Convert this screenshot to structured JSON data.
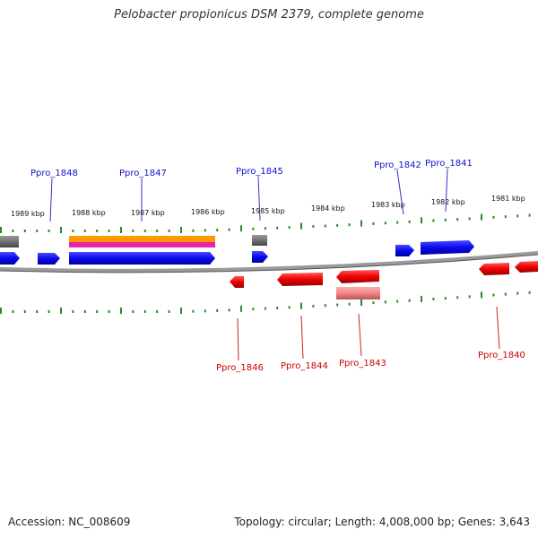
{
  "title": "Pelobacter propionicus DSM 2379, complete genome",
  "footer": {
    "accession": "Accession: NC_008609",
    "info": "Topology: circular; Length: 4,008,000 bp; Genes: 3,643"
  },
  "kbp_labels": [
    "1989 kbp",
    "1988 kbp",
    "1987 kbp",
    "1986 kbp",
    "1985 kbp",
    "1984 kbp",
    "1983 kbp",
    "1982 kbp",
    "1981 kbp"
  ],
  "forward_genes": [
    "Ppro_1848",
    "Ppro_1847",
    "Ppro_1845",
    "Ppro_1842",
    "Ppro_1841"
  ],
  "reverse_genes": [
    "Ppro_1846",
    "Ppro_1844",
    "Ppro_1843",
    "Ppro_1840"
  ],
  "colors": {
    "forward": "#1111ee",
    "reverse": "#ee1111",
    "reverse_light": "#ee8888",
    "gray_feature": "#777777",
    "tick": "#2a8a2a",
    "backbone": "#888888",
    "orange": "#ff9900",
    "magenta": "#ee22aa"
  }
}
